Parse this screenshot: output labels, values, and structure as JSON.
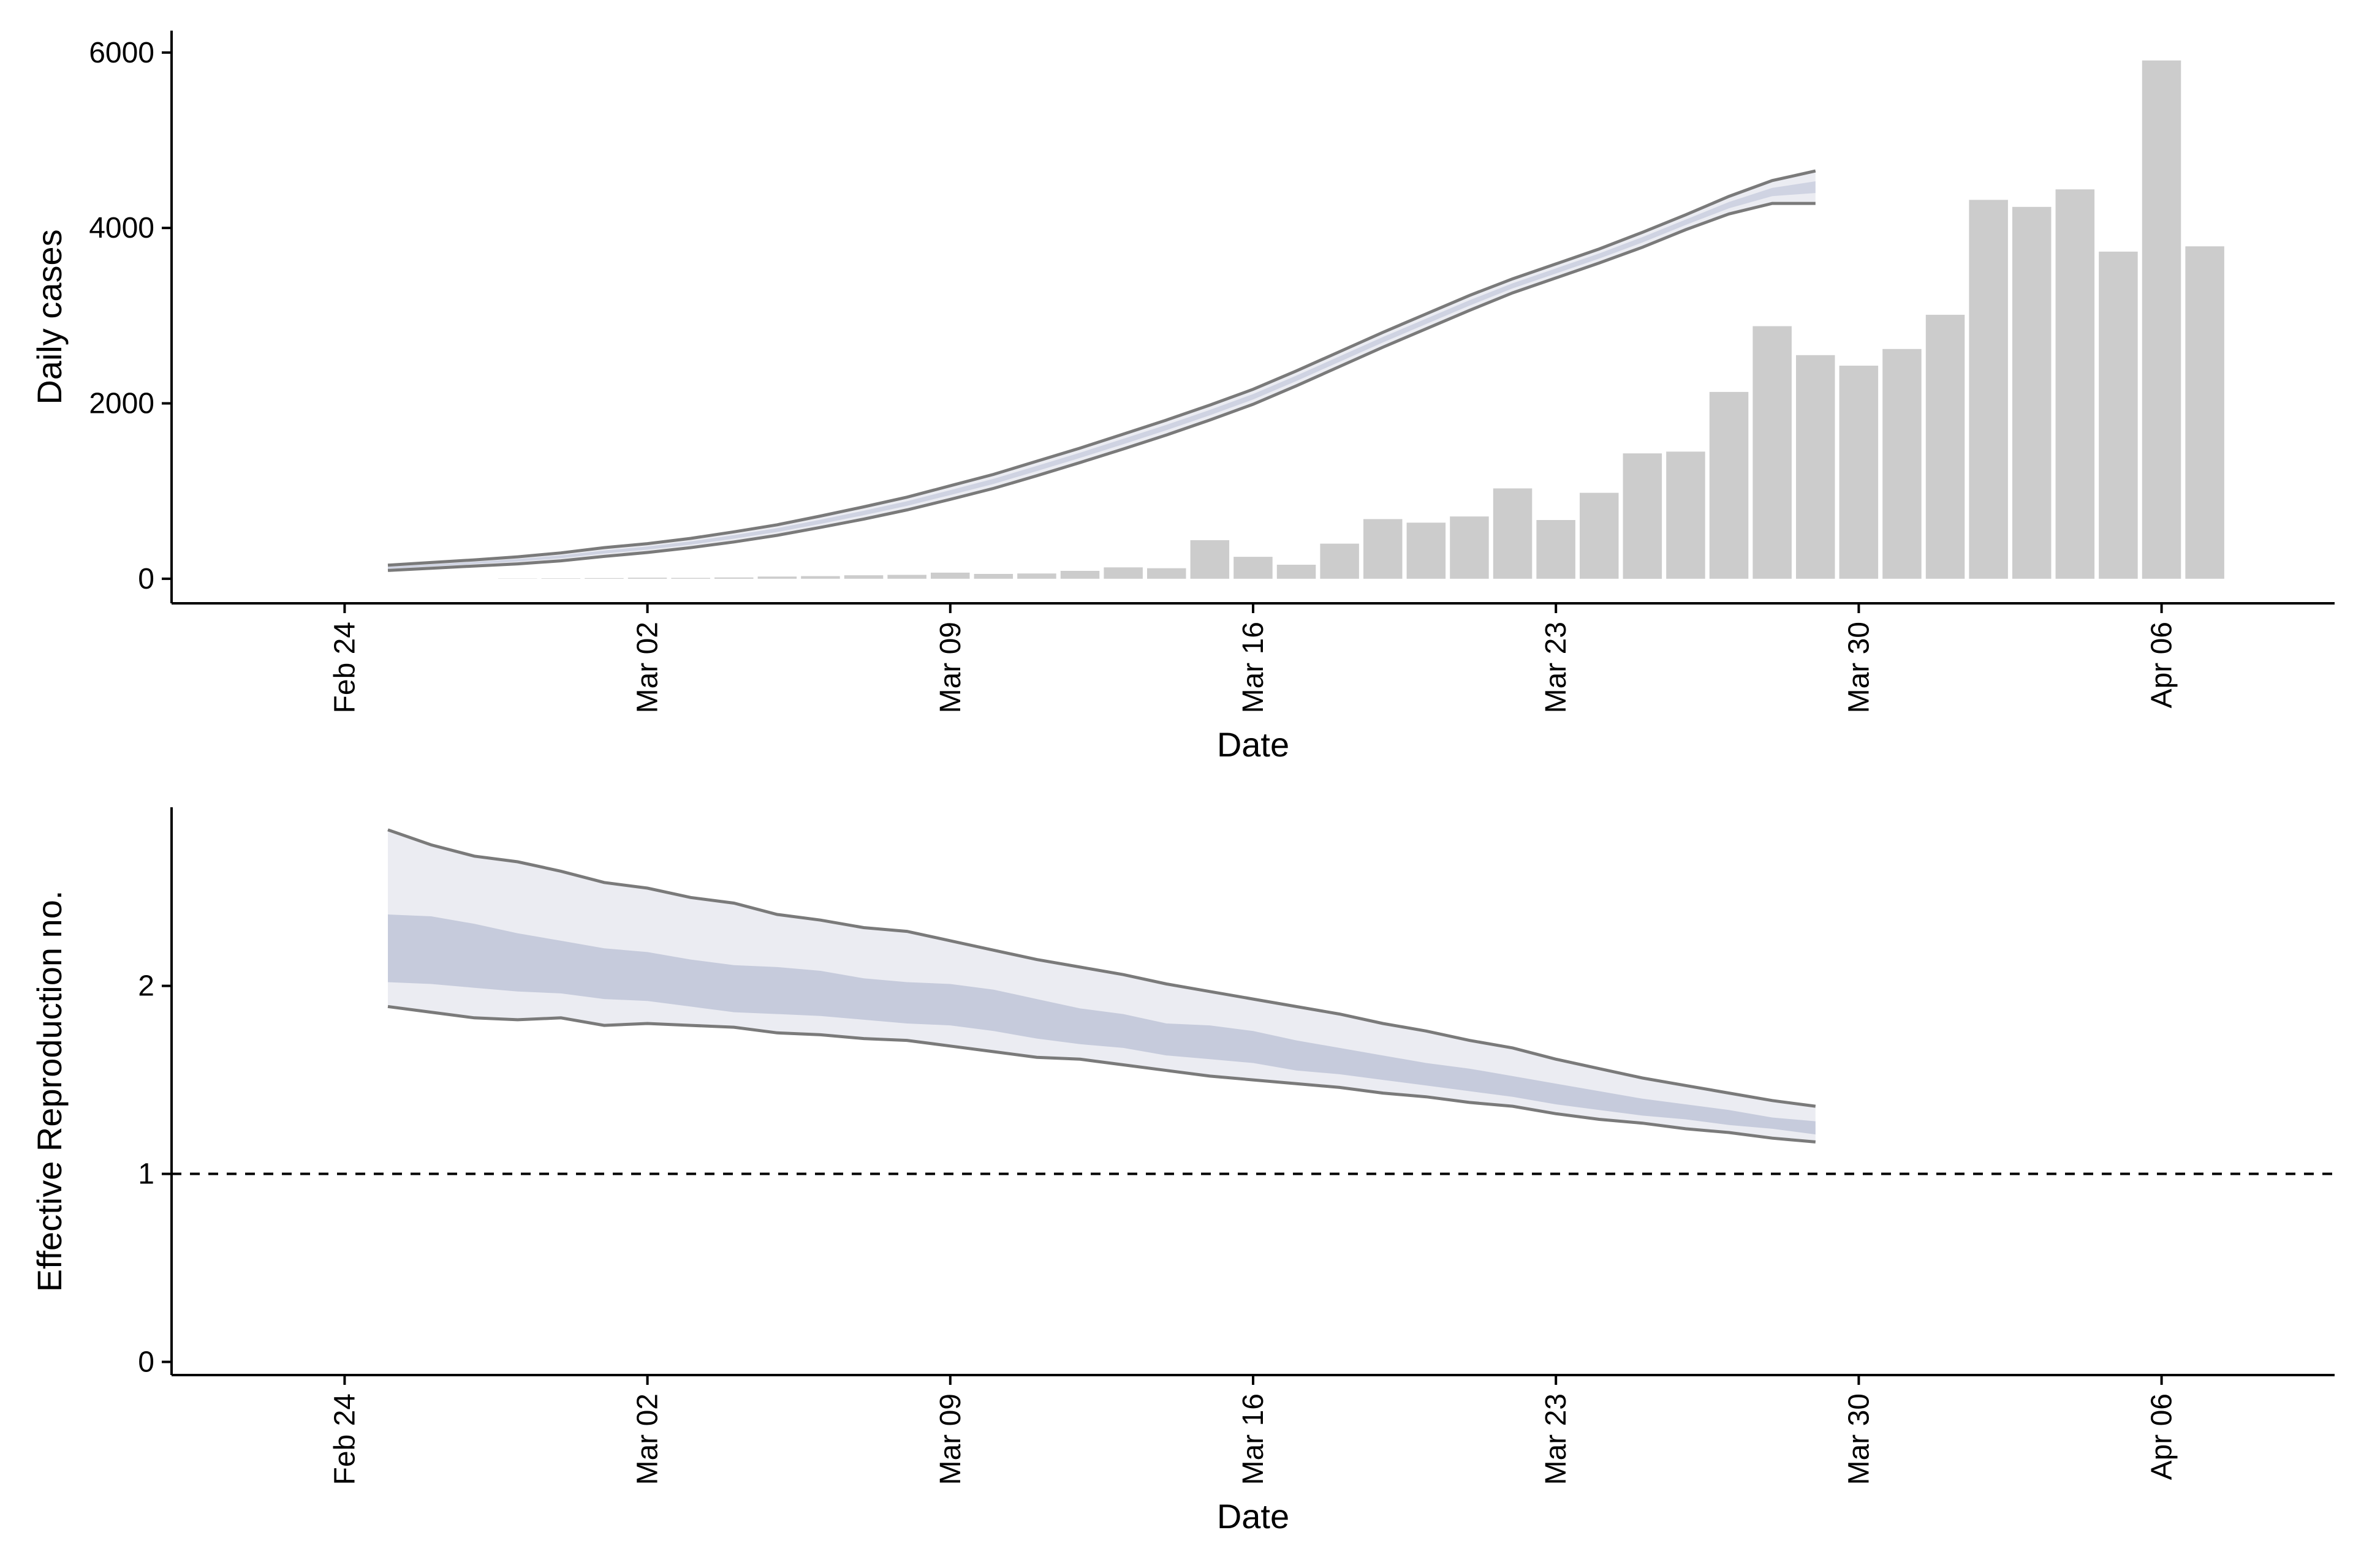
{
  "chart_data": [
    {
      "type": "bar",
      "panel": "top",
      "xlabel": "Date",
      "ylabel": "Daily cases",
      "ylim": [
        -280,
        6250
      ],
      "xlim": [
        "2020-02-20",
        "2020-04-10"
      ],
      "x_ticks": [
        {
          "date": "2020-02-24",
          "label": "Feb 24"
        },
        {
          "date": "2020-03-02",
          "label": "Mar 02"
        },
        {
          "date": "2020-03-09",
          "label": "Mar 09"
        },
        {
          "date": "2020-03-16",
          "label": "Mar 16"
        },
        {
          "date": "2020-03-23",
          "label": "Mar 23"
        },
        {
          "date": "2020-03-30",
          "label": "Mar 30"
        },
        {
          "date": "2020-04-06",
          "label": "Apr 06"
        }
      ],
      "y_ticks": [
        0,
        2000,
        4000,
        6000
      ],
      "bars": {
        "dates": [
          "2020-02-28",
          "2020-02-29",
          "2020-03-01",
          "2020-03-02",
          "2020-03-03",
          "2020-03-04",
          "2020-03-05",
          "2020-03-06",
          "2020-03-07",
          "2020-03-08",
          "2020-03-09",
          "2020-03-10",
          "2020-03-11",
          "2020-03-12",
          "2020-03-13",
          "2020-03-14",
          "2020-03-15",
          "2020-03-16",
          "2020-03-17",
          "2020-03-18",
          "2020-03-19",
          "2020-03-20",
          "2020-03-21",
          "2020-03-22",
          "2020-03-23",
          "2020-03-24",
          "2020-03-25",
          "2020-03-26",
          "2020-03-27",
          "2020-03-28",
          "2020-03-29",
          "2020-03-30",
          "2020-03-31",
          "2020-04-01",
          "2020-04-02",
          "2020-04-03",
          "2020-04-04",
          "2020-04-05",
          "2020-04-06",
          "2020-04-07"
        ],
        "values": [
          3,
          5,
          8,
          12,
          10,
          15,
          25,
          30,
          40,
          45,
          70,
          55,
          60,
          90,
          130,
          120,
          440,
          250,
          160,
          400,
          680,
          640,
          710,
          1030,
          670,
          980,
          1430,
          1450,
          2130,
          2880,
          2550,
          2430,
          2620,
          3010,
          4320,
          4240,
          4440,
          3730,
          5910,
          3790
        ]
      },
      "band": {
        "dates": [
          "2020-02-25",
          "2020-02-26",
          "2020-02-27",
          "2020-02-28",
          "2020-02-29",
          "2020-03-01",
          "2020-03-02",
          "2020-03-03",
          "2020-03-04",
          "2020-03-05",
          "2020-03-06",
          "2020-03-07",
          "2020-03-08",
          "2020-03-09",
          "2020-03-10",
          "2020-03-11",
          "2020-03-12",
          "2020-03-13",
          "2020-03-14",
          "2020-03-15",
          "2020-03-16",
          "2020-03-17",
          "2020-03-18",
          "2020-03-19",
          "2020-03-20",
          "2020-03-21",
          "2020-03-22",
          "2020-03-23",
          "2020-03-24",
          "2020-03-25",
          "2020-03-26",
          "2020-03-27",
          "2020-03-28",
          "2020-03-29"
        ],
        "upper": [
          155,
          185,
          215,
          250,
          295,
          355,
          400,
          460,
          535,
          615,
          715,
          820,
          930,
          1060,
          1190,
          1340,
          1490,
          1650,
          1810,
          1980,
          2160,
          2370,
          2590,
          2810,
          3020,
          3230,
          3420,
          3590,
          3760,
          3950,
          4150,
          4360,
          4540,
          4650
        ],
        "lower": [
          95,
          120,
          145,
          170,
          205,
          255,
          300,
          355,
          420,
          495,
          585,
          680,
          785,
          905,
          1030,
          1175,
          1325,
          1480,
          1640,
          1810,
          1990,
          2200,
          2420,
          2640,
          2850,
          3060,
          3260,
          3430,
          3600,
          3780,
          3980,
          4160,
          4280,
          4280
        ]
      }
    },
    {
      "type": "area",
      "panel": "bottom",
      "xlabel": "Date",
      "ylabel": "Effective Reproduction no.",
      "ylim": [
        -0.07,
        2.95
      ],
      "xlim": [
        "2020-02-20",
        "2020-04-10"
      ],
      "x_ticks": [
        {
          "date": "2020-02-24",
          "label": "Feb 24"
        },
        {
          "date": "2020-03-02",
          "label": "Mar 02"
        },
        {
          "date": "2020-03-09",
          "label": "Mar 09"
        },
        {
          "date": "2020-03-16",
          "label": "Mar 16"
        },
        {
          "date": "2020-03-23",
          "label": "Mar 23"
        },
        {
          "date": "2020-03-30",
          "label": "Mar 30"
        },
        {
          "date": "2020-04-06",
          "label": "Apr 06"
        }
      ],
      "y_ticks": [
        0,
        1,
        2
      ],
      "reference_line": 1,
      "band": {
        "dates": [
          "2020-02-25",
          "2020-02-26",
          "2020-02-27",
          "2020-02-28",
          "2020-02-29",
          "2020-03-01",
          "2020-03-02",
          "2020-03-03",
          "2020-03-04",
          "2020-03-05",
          "2020-03-06",
          "2020-03-07",
          "2020-03-08",
          "2020-03-09",
          "2020-03-10",
          "2020-03-11",
          "2020-03-12",
          "2020-03-13",
          "2020-03-14",
          "2020-03-15",
          "2020-03-16",
          "2020-03-17",
          "2020-03-18",
          "2020-03-19",
          "2020-03-20",
          "2020-03-21",
          "2020-03-22",
          "2020-03-23",
          "2020-03-24",
          "2020-03-25",
          "2020-03-26",
          "2020-03-27",
          "2020-03-28",
          "2020-03-29"
        ],
        "outer_upper": [
          2.83,
          2.75,
          2.69,
          2.66,
          2.61,
          2.55,
          2.52,
          2.47,
          2.44,
          2.38,
          2.35,
          2.31,
          2.29,
          2.24,
          2.19,
          2.14,
          2.1,
          2.06,
          2.01,
          1.97,
          1.93,
          1.89,
          1.85,
          1.8,
          1.76,
          1.71,
          1.67,
          1.61,
          1.56,
          1.51,
          1.47,
          1.43,
          1.39,
          1.36
        ],
        "inner_upper": [
          2.38,
          2.37,
          2.33,
          2.28,
          2.24,
          2.2,
          2.18,
          2.14,
          2.11,
          2.1,
          2.08,
          2.04,
          2.02,
          2.01,
          1.98,
          1.93,
          1.88,
          1.85,
          1.8,
          1.79,
          1.76,
          1.71,
          1.67,
          1.63,
          1.59,
          1.56,
          1.52,
          1.48,
          1.44,
          1.4,
          1.37,
          1.34,
          1.3,
          1.28
        ],
        "inner_lower": [
          2.02,
          2.01,
          1.99,
          1.97,
          1.96,
          1.93,
          1.92,
          1.89,
          1.86,
          1.85,
          1.84,
          1.82,
          1.8,
          1.79,
          1.76,
          1.72,
          1.69,
          1.67,
          1.63,
          1.61,
          1.59,
          1.55,
          1.53,
          1.5,
          1.47,
          1.44,
          1.41,
          1.37,
          1.34,
          1.31,
          1.29,
          1.26,
          1.24,
          1.21
        ],
        "outer_lower": [
          1.89,
          1.86,
          1.83,
          1.82,
          1.83,
          1.79,
          1.8,
          1.79,
          1.78,
          1.75,
          1.74,
          1.72,
          1.71,
          1.68,
          1.65,
          1.62,
          1.61,
          1.58,
          1.55,
          1.52,
          1.5,
          1.48,
          1.46,
          1.43,
          1.41,
          1.38,
          1.36,
          1.32,
          1.29,
          1.27,
          1.24,
          1.22,
          1.19,
          1.17
        ]
      }
    }
  ],
  "colors": {
    "bar": "#cccccc",
    "band_outer": "#ebecf2",
    "band_inner": "#c6cbdc",
    "band_line": "#7a7a7a",
    "axis": "#000000",
    "reference_line": "#000000"
  }
}
